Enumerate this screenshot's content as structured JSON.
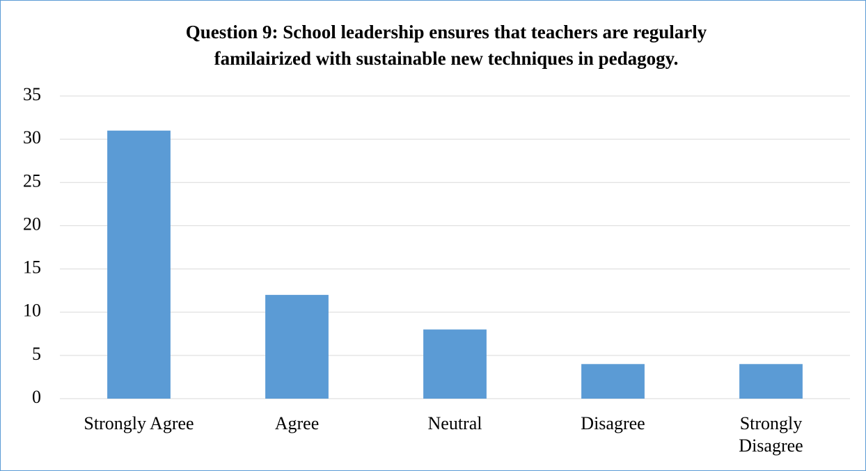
{
  "chart_data": {
    "type": "bar",
    "title": [
      "Question 9: School leadership ensures that teachers are regularly",
      "familairized with sustainable new techniques in pedagogy."
    ],
    "categories": [
      "Strongly Agree",
      "Agree",
      "Neutral",
      "Disagree",
      "Strongly\nDisagree"
    ],
    "values": [
      31,
      12,
      8,
      4,
      4
    ],
    "color": "#5b9bd5",
    "ylim": [
      0,
      35
    ],
    "yticks": [
      0,
      5,
      10,
      15,
      20,
      25,
      30,
      35
    ],
    "grid": true
  }
}
